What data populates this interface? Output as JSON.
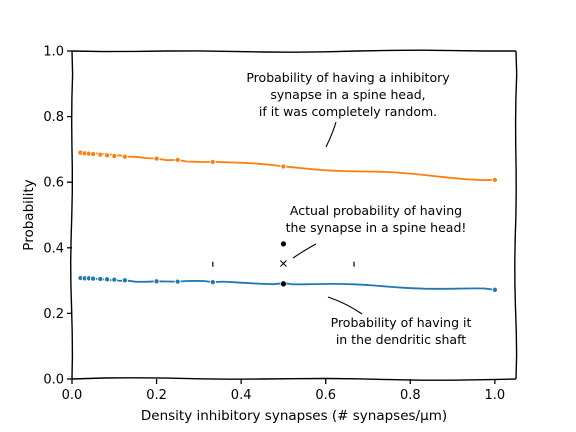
{
  "chart_data": {
    "type": "line",
    "title": "",
    "xlabel": "Density inhibitory synapses (# synapses/μm)",
    "ylabel": "Probability",
    "xlim": [
      0.0,
      1.05
    ],
    "ylim": [
      0.0,
      1.0
    ],
    "xticks": [
      "0.0",
      "0.2",
      "0.4",
      "0.6",
      "0.8",
      "1.0"
    ],
    "yticks": [
      "0.0",
      "0.2",
      "0.4",
      "0.6",
      "0.8",
      "1.0"
    ],
    "grid": false,
    "legend": "none",
    "series": [
      {
        "color": "#ff7f0e",
        "x": [
          0.02,
          0.03,
          0.04,
          0.05,
          0.067,
          0.083,
          0.1,
          0.125,
          0.2,
          0.25,
          0.333,
          0.5,
          1.0
        ],
        "y": [
          0.69,
          0.688,
          0.687,
          0.686,
          0.684,
          0.682,
          0.68,
          0.678,
          0.672,
          0.668,
          0.662,
          0.648,
          0.607
        ]
      },
      {
        "color": "#1f77b4",
        "x": [
          0.02,
          0.03,
          0.04,
          0.05,
          0.067,
          0.083,
          0.1,
          0.125,
          0.2,
          0.25,
          0.333,
          0.5,
          1.0
        ],
        "y": [
          0.308,
          0.307,
          0.307,
          0.306,
          0.305,
          0.304,
          0.303,
          0.301,
          0.298,
          0.297,
          0.295,
          0.292,
          0.272
        ]
      }
    ],
    "markers": [
      {
        "shape": "dot",
        "x": 0.5,
        "y": 0.412
      },
      {
        "shape": "x",
        "x": 0.5,
        "y": 0.352
      },
      {
        "shape": "dot",
        "x": 0.5,
        "y": 0.29
      },
      {
        "shape": "tick",
        "x": 0.333,
        "y": 0.35
      },
      {
        "shape": "tick",
        "x": 0.667,
        "y": 0.35
      }
    ],
    "annotations": [
      {
        "lines": [
          "Probability of having a inhibitory",
          "synapse in a spine head,",
          "if it was completely random."
        ]
      },
      {
        "lines": [
          "Actual probability of having",
          "the synapse in a spine head!"
        ]
      },
      {
        "lines": [
          "Probability of having it",
          "in the dendritic shaft"
        ]
      }
    ]
  }
}
